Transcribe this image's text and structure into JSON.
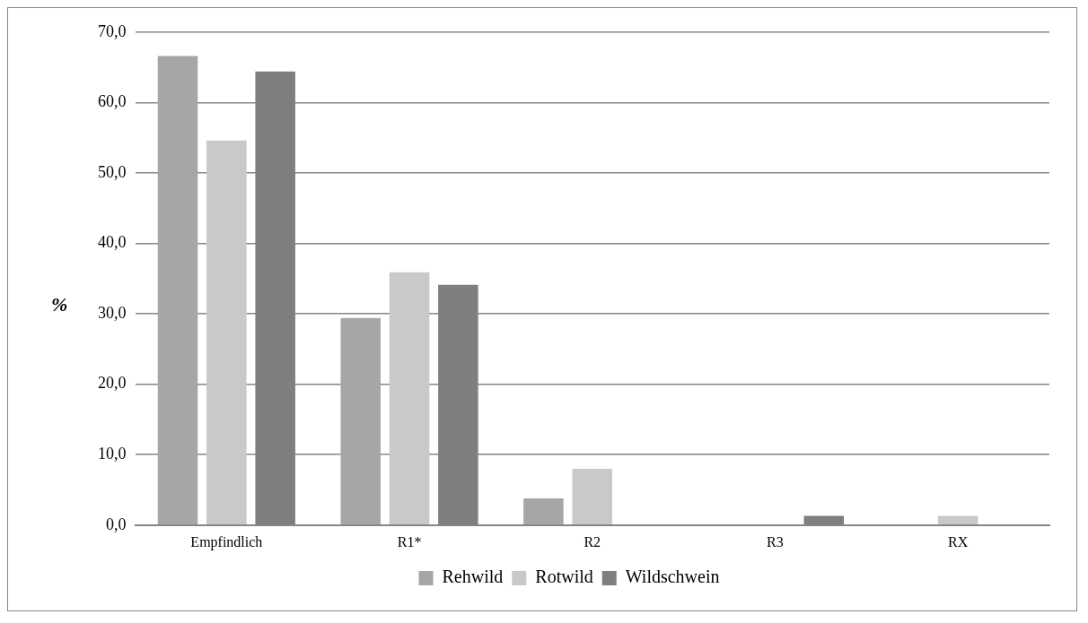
{
  "chart_data": {
    "type": "bar",
    "ylabel": "%",
    "categories": [
      "Empfindlich",
      "R1*",
      "R2",
      "R3",
      "RX"
    ],
    "series": [
      {
        "name": "Rehwild",
        "color": "#a6a6a6",
        "values": [
          66.6,
          29.4,
          3.8,
          0,
          0
        ]
      },
      {
        "name": "Rotwild",
        "color": "#c9c9c9",
        "values": [
          54.6,
          35.9,
          8.0,
          0,
          1.3
        ]
      },
      {
        "name": "Wildschwein",
        "color": "#7f7f7f",
        "values": [
          64.4,
          34.1,
          0,
          1.3,
          0
        ]
      }
    ],
    "ylim": [
      0,
      70
    ],
    "yticks": [
      {
        "value": 0,
        "label": "0,0"
      },
      {
        "value": 10,
        "label": "10,0"
      },
      {
        "value": 20,
        "label": "20,0"
      },
      {
        "value": 30,
        "label": "30,0"
      },
      {
        "value": 40,
        "label": "40,0"
      },
      {
        "value": 50,
        "label": "50,0"
      },
      {
        "value": 60,
        "label": "60,0"
      },
      {
        "value": 70,
        "label": "70,0"
      }
    ],
    "grid": "y",
    "legend": "bottom"
  }
}
